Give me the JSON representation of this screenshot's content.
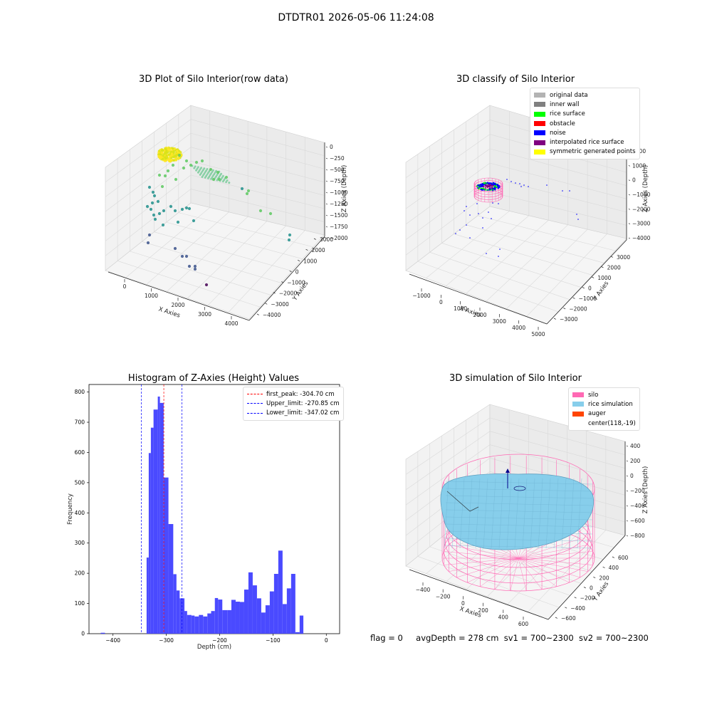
{
  "suptitle": "DTDTR01 2026-05-06 11:24:08",
  "footer": {
    "flag": "flag = 0",
    "avg_depth": "avgDepth = 278 cm",
    "sv1": "sv1 = 700~2300",
    "sv2": "sv2 = 700~2300"
  },
  "plot1": {
    "title": "3D Plot of Silo Interior(row data)",
    "xlabel": "X Axies",
    "ylabel": "Y Axies",
    "zlabel": "Z Axies (Depth)",
    "xticks": [
      "0",
      "1000",
      "2000",
      "3000",
      "4000"
    ],
    "yticks": [
      "−4000",
      "−3000",
      "−2000",
      "−1000",
      "0",
      "1000",
      "2000",
      "3000"
    ],
    "zticks": [
      "−2000",
      "−1750",
      "−1500",
      "−1250",
      "−1000",
      "−750",
      "−500",
      "−250",
      "0"
    ]
  },
  "plot2": {
    "title": "3D classify of Silo Interior",
    "xlabel": "X Axies",
    "ylabel": "Y Axies",
    "zlabel": "Z Axies (Depth)",
    "xticks": [
      "−1000",
      "0",
      "1000",
      "2000",
      "3000",
      "4000",
      "5000"
    ],
    "yticks": [
      "−3000",
      "−2000",
      "−1000",
      "0",
      "1000",
      "2000",
      "3000"
    ],
    "zticks": [
      "−4000",
      "−3000",
      "−2000",
      "−1000",
      "0",
      "1000",
      "2000"
    ],
    "legend": [
      {
        "label": "original data",
        "color": "#b3b3b3"
      },
      {
        "label": "inner wall",
        "color": "#808080"
      },
      {
        "label": "rice surface",
        "color": "#00ff00"
      },
      {
        "label": "obstacle",
        "color": "#ff0000"
      },
      {
        "label": "noise",
        "color": "#0000ff"
      },
      {
        "label": "interpolated rice surface",
        "color": "#800080"
      },
      {
        "label": "symmetric generated points",
        "color": "#ffff00"
      }
    ]
  },
  "plot4": {
    "title": "3D simulation of Silo Interior",
    "xlabel": "X Axies",
    "ylabel": "Y Axies",
    "zlabel": "Z Axies (Depth)",
    "xticks": [
      "−400",
      "−200",
      "0",
      "200",
      "400",
      "600"
    ],
    "yticks": [
      "−600",
      "−400",
      "−200",
      "0",
      "200",
      "400",
      "600"
    ],
    "zticks": [
      "−800",
      "−600",
      "−400",
      "−200",
      "0",
      "200",
      "400"
    ],
    "legend": [
      {
        "label": "silo",
        "color": "#ff69b4"
      },
      {
        "label": "rice simulation",
        "color": "#87ceeb"
      },
      {
        "label": "auger",
        "color": "#ff4500"
      },
      {
        "label": "center(118,-19)",
        "color": ""
      }
    ]
  },
  "chart_data": [
    {
      "type": "scatter",
      "title": "3D Plot of Silo Interior(row data)",
      "xlabel": "X Axies",
      "ylabel": "Y Axies",
      "zlabel": "Z Axies (Depth)",
      "xlim": [
        -500,
        4500
      ],
      "ylim": [
        -4000,
        3500
      ],
      "zlim": [
        -2100,
        100
      ],
      "grid": true
    },
    {
      "type": "scatter",
      "title": "3D classify of Silo Interior",
      "xlabel": "X Axies",
      "ylabel": "Y Axies",
      "zlabel": "Z Axies (Depth)",
      "xlim": [
        -1500,
        5000
      ],
      "ylim": [
        -3500,
        3500
      ],
      "zlim": [
        -4500,
        2000
      ],
      "legend_position": "top-right",
      "grid": true
    },
    {
      "type": "bar",
      "title": "Histogram of Z-Axies (Height) Values",
      "xlabel": "Depth (cm)",
      "ylabel": "Frequency",
      "xlim": [
        -445,
        25
      ],
      "ylim": [
        0,
        825
      ],
      "xticks": [
        -400,
        -300,
        -200,
        -100,
        0
      ],
      "yticks": [
        0,
        100,
        200,
        300,
        400,
        500,
        600,
        700,
        800
      ],
      "color": "#4a4aff",
      "bins": [
        {
          "x0": -423,
          "x1": -415,
          "count": 3
        },
        {
          "x0": -337,
          "x1": -333,
          "count": 252
        },
        {
          "x0": -333,
          "x1": -329,
          "count": 598
        },
        {
          "x0": -329,
          "x1": -324,
          "count": 682
        },
        {
          "x0": -324,
          "x1": -316,
          "count": 742
        },
        {
          "x0": -316,
          "x1": -312,
          "count": 785
        },
        {
          "x0": -312,
          "x1": -305,
          "count": 764
        },
        {
          "x0": -305,
          "x1": -296,
          "count": 517
        },
        {
          "x0": -296,
          "x1": -287,
          "count": 363
        },
        {
          "x0": -287,
          "x1": -281,
          "count": 197
        },
        {
          "x0": -281,
          "x1": -275,
          "count": 143
        },
        {
          "x0": -275,
          "x1": -266,
          "count": 117
        },
        {
          "x0": -266,
          "x1": -261,
          "count": 75
        },
        {
          "x0": -261,
          "x1": -253,
          "count": 62
        },
        {
          "x0": -253,
          "x1": -247,
          "count": 60
        },
        {
          "x0": -247,
          "x1": -239,
          "count": 57
        },
        {
          "x0": -239,
          "x1": -231,
          "count": 62
        },
        {
          "x0": -231,
          "x1": -223,
          "count": 57
        },
        {
          "x0": -223,
          "x1": -216,
          "count": 67
        },
        {
          "x0": -216,
          "x1": -209,
          "count": 75
        },
        {
          "x0": -209,
          "x1": -203,
          "count": 118
        },
        {
          "x0": -203,
          "x1": -195,
          "count": 113
        },
        {
          "x0": -195,
          "x1": -185,
          "count": 78
        },
        {
          "x0": -185,
          "x1": -178,
          "count": 78
        },
        {
          "x0": -178,
          "x1": -170,
          "count": 112
        },
        {
          "x0": -170,
          "x1": -162,
          "count": 106
        },
        {
          "x0": -162,
          "x1": -154,
          "count": 105
        },
        {
          "x0": -154,
          "x1": -146,
          "count": 146
        },
        {
          "x0": -146,
          "x1": -138,
          "count": 203
        },
        {
          "x0": -138,
          "x1": -130,
          "count": 160
        },
        {
          "x0": -130,
          "x1": -122,
          "count": 117
        },
        {
          "x0": -122,
          "x1": -114,
          "count": 70
        },
        {
          "x0": -114,
          "x1": -106,
          "count": 94
        },
        {
          "x0": -106,
          "x1": -98,
          "count": 140
        },
        {
          "x0": -98,
          "x1": -90,
          "count": 198
        },
        {
          "x0": -90,
          "x1": -82,
          "count": 275
        },
        {
          "x0": -82,
          "x1": -74,
          "count": 98
        },
        {
          "x0": -74,
          "x1": -66,
          "count": 150
        },
        {
          "x0": -66,
          "x1": -58,
          "count": 198
        },
        {
          "x0": -58,
          "x1": -50,
          "count": 5
        },
        {
          "x0": -50,
          "x1": -43,
          "count": 60
        }
      ],
      "vlines": [
        {
          "label": "first_peak: -304.70 cm",
          "x": -304.7,
          "color": "#ff0000"
        },
        {
          "label": "Upper_limit: -270.85 cm",
          "x": -270.85,
          "color": "#0000ff"
        },
        {
          "label": "Lower_limit: -347.02 cm",
          "x": -347.02,
          "color": "#0000ff"
        }
      ],
      "legend_position": "top-right"
    },
    {
      "type": "surface",
      "title": "3D simulation of Silo Interior",
      "xlabel": "X Axies",
      "ylabel": "Y Axies",
      "zlabel": "Z Axies (Depth)",
      "xlim": [
        -500,
        700
      ],
      "ylim": [
        -700,
        700
      ],
      "zlim": [
        -900,
        450
      ],
      "center": [
        118,
        -19
      ],
      "legend_position": "top-right",
      "grid": true
    }
  ]
}
